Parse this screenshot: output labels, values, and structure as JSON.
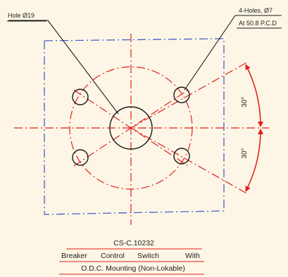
{
  "labels": {
    "hole_center": "Hole Ø19",
    "holes_count": "4-Holes, Ø7",
    "pcd": "At 50.8 P.C.D"
  },
  "angles": {
    "upper": "30°",
    "lower": "30°"
  },
  "caption": {
    "code": "CS-C.10232",
    "words": [
      "Breaker",
      "Control",
      "Switch",
      "With"
    ],
    "line2": "O.D.C. Mounting (Non-Lokable)"
  },
  "colors": {
    "background": "#fdf6e6",
    "outline": "#1a1a1a",
    "centerline": "#e0201a",
    "panel": "#4a5fc4",
    "text": "#222222"
  }
}
